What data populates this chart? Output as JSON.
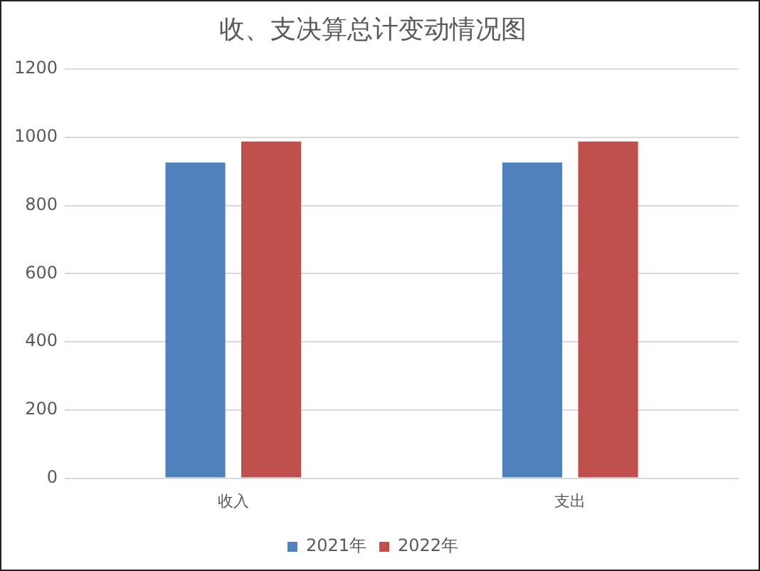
{
  "chart_data": {
    "type": "bar",
    "title": "收、支决算总计变动情况图",
    "categories": [
      "收入",
      "支出"
    ],
    "series": [
      {
        "name": "2021年",
        "color": "#4f81bd",
        "values": [
          926,
          926
        ]
      },
      {
        "name": "2022年",
        "color": "#c0504d",
        "values": [
          988,
          988
        ]
      }
    ],
    "ylim": [
      0,
      1200
    ],
    "yticks": [
      0,
      200,
      400,
      600,
      800,
      1000,
      1200
    ],
    "grid": "y",
    "legend": "bottom"
  }
}
